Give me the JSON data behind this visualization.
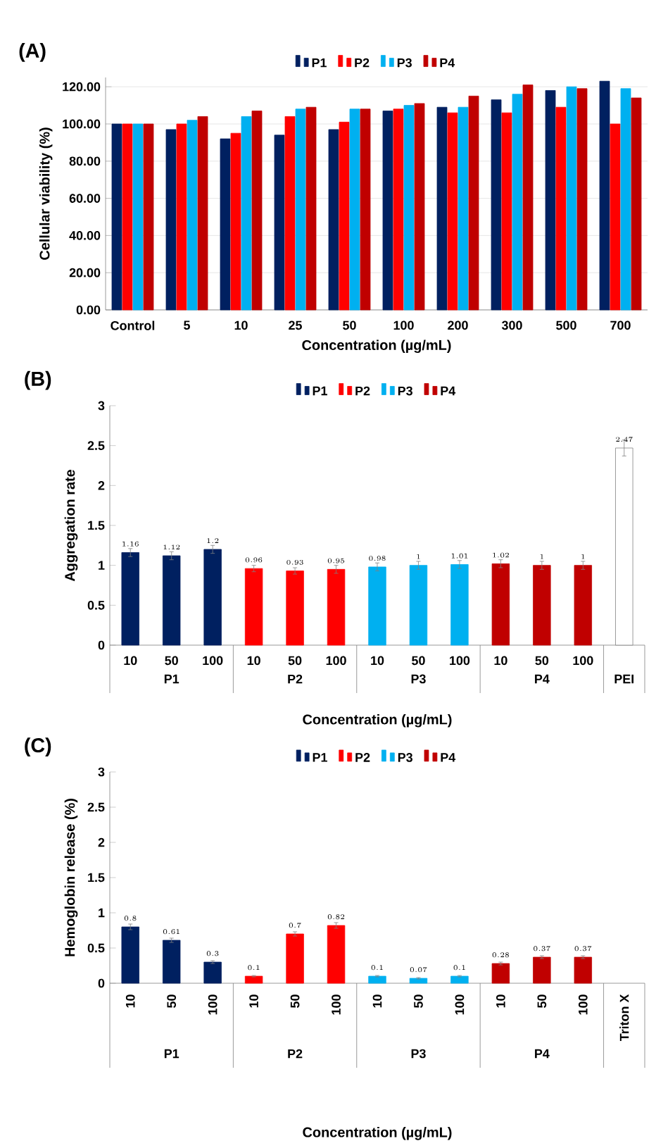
{
  "chart_data": [
    {
      "type": "bar",
      "title": "(A)",
      "xlabel": "Concentration (µg/mL)",
      "ylabel": "Cellular viability (%)",
      "categories": [
        "Control",
        "5",
        "10",
        "25",
        "50",
        "100",
        "200",
        "300",
        "500",
        "700"
      ],
      "series": [
        {
          "name": "P1",
          "color": "#002060",
          "values": [
            100,
            97,
            92,
            94,
            97,
            107,
            109,
            113,
            118,
            123
          ]
        },
        {
          "name": "P2",
          "color": "#ff0000",
          "values": [
            100,
            100,
            95,
            104,
            101,
            108,
            106,
            106,
            109,
            100
          ]
        },
        {
          "name": "P3",
          "color": "#00b0f0",
          "values": [
            100,
            102,
            104,
            108,
            108,
            110,
            109,
            116,
            120,
            119
          ]
        },
        {
          "name": "P4",
          "color": "#c00000",
          "values": [
            100,
            104,
            107,
            109,
            108,
            111,
            115,
            121,
            119,
            114
          ]
        }
      ],
      "ylim": [
        0,
        125
      ],
      "yticks": [
        {
          "value": 0,
          "label": "0.00"
        },
        {
          "value": 20,
          "label": "20.00"
        },
        {
          "value": 40,
          "label": "40.00"
        },
        {
          "value": 60,
          "label": "60.00"
        },
        {
          "value": 80,
          "label": "80.00"
        },
        {
          "value": 100,
          "label": "100.00"
        },
        {
          "value": 120,
          "label": "120.00"
        }
      ],
      "grid": "y",
      "legend": "top"
    },
    {
      "type": "bar",
      "title": "(B)",
      "xlabel": "Concentration (µg/mL)",
      "ylabel": "Aggregation rate",
      "categories": [
        "10",
        "50",
        "100",
        "10",
        "50",
        "100",
        "10",
        "50",
        "100",
        "10",
        "50",
        "100",
        null
      ],
      "annotations": [
        "P1",
        "P2",
        "P3",
        "P4",
        "PEI"
      ],
      "series": [
        {
          "name": "P1",
          "color": "#002060",
          "values": [
            1.16,
            1.12,
            1.2,
            null,
            null,
            null,
            null,
            null,
            null,
            null,
            null,
            null,
            null
          ],
          "errors": [
            0.05,
            0.05,
            0.05,
            null,
            null,
            null,
            null,
            null,
            null,
            null,
            null,
            null,
            null
          ]
        },
        {
          "name": "P2",
          "color": "#ff0000",
          "values": [
            null,
            null,
            null,
            0.96,
            0.93,
            0.95,
            null,
            null,
            null,
            null,
            null,
            null,
            null
          ],
          "errors": [
            null,
            null,
            null,
            0.04,
            0.04,
            0.05,
            null,
            null,
            null,
            null,
            null,
            null,
            null
          ]
        },
        {
          "name": "P3",
          "color": "#00b0f0",
          "values": [
            null,
            null,
            null,
            null,
            null,
            null,
            0.98,
            1,
            1.01,
            null,
            null,
            null,
            null
          ],
          "errors": [
            null,
            null,
            null,
            null,
            null,
            null,
            0.05,
            0.05,
            0.05,
            null,
            null,
            null,
            null
          ]
        },
        {
          "name": "P4",
          "color": "#c00000",
          "values": [
            null,
            null,
            null,
            null,
            null,
            null,
            null,
            null,
            null,
            1.02,
            1,
            1,
            null
          ],
          "errors": [
            null,
            null,
            null,
            null,
            null,
            null,
            null,
            null,
            null,
            0.05,
            0.05,
            0.05,
            null
          ]
        },
        {
          "color": "#ffffff",
          "values": [
            null,
            null,
            null,
            null,
            null,
            null,
            null,
            null,
            null,
            null,
            null,
            null,
            2.47
          ],
          "errors": [
            null,
            null,
            null,
            null,
            null,
            null,
            null,
            null,
            null,
            null,
            null,
            null,
            0.1
          ]
        }
      ],
      "ylim": [
        0,
        3
      ],
      "yticks": [
        0,
        0.5,
        1,
        1.5,
        2,
        2.5,
        3
      ],
      "data_labels": true,
      "legend": "top"
    },
    {
      "type": "bar",
      "title": "(C)",
      "xlabel": "Concentration (µg/mL)",
      "ylabel": "Hemoglobin release (%)",
      "categories": [
        "10",
        "50",
        "100",
        "10",
        "50",
        "100",
        "10",
        "50",
        "100",
        "10",
        "50",
        "100",
        "Triton X"
      ],
      "annotations": [
        "P1",
        "P2",
        "P3",
        "P4"
      ],
      "series": [
        {
          "name": "P1",
          "color": "#002060",
          "values": [
            0.8,
            0.61,
            0.3,
            null,
            null,
            null,
            null,
            null,
            null,
            null,
            null,
            null,
            null
          ],
          "errors": [
            0.04,
            0.03,
            0.02,
            null,
            null,
            null,
            null,
            null,
            null,
            null,
            null,
            null,
            null
          ]
        },
        {
          "name": "P2",
          "color": "#ff0000",
          "values": [
            null,
            null,
            null,
            0.1,
            0.7,
            0.82,
            null,
            null,
            null,
            null,
            null,
            null,
            null
          ],
          "errors": [
            null,
            null,
            null,
            0.01,
            0.03,
            0.04,
            null,
            null,
            null,
            null,
            null,
            null,
            null
          ]
        },
        {
          "name": "P3",
          "color": "#00b0f0",
          "values": [
            null,
            null,
            null,
            null,
            null,
            null,
            0.1,
            0.07,
            0.1,
            null,
            null,
            null,
            null
          ],
          "errors": [
            null,
            null,
            null,
            null,
            null,
            null,
            0.01,
            0.01,
            0.01,
            null,
            null,
            null,
            null
          ]
        },
        {
          "name": "P4",
          "color": "#c00000",
          "values": [
            null,
            null,
            null,
            null,
            null,
            null,
            null,
            null,
            null,
            0.28,
            0.37,
            0.37,
            null
          ],
          "errors": [
            null,
            null,
            null,
            null,
            null,
            null,
            null,
            null,
            null,
            0.02,
            0.02,
            0.02,
            null
          ]
        }
      ],
      "ylim": [
        0,
        3
      ],
      "yticks": [
        0,
        0.5,
        1,
        1.5,
        2,
        2.5,
        3
      ],
      "data_labels": true,
      "legend": "top"
    }
  ]
}
